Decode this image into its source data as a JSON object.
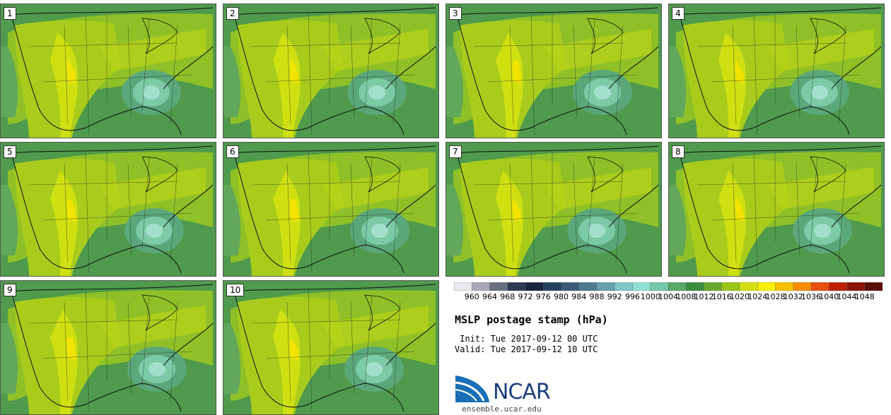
{
  "panels": [
    {
      "label": "1"
    },
    {
      "label": "2"
    },
    {
      "label": "3"
    },
    {
      "label": "4"
    },
    {
      "label": "5"
    },
    {
      "label": "6"
    },
    {
      "label": "7"
    },
    {
      "label": "8"
    },
    {
      "label": "9"
    },
    {
      "label": "10"
    }
  ],
  "legend": {
    "levels": [
      "960",
      "964",
      "968",
      "972",
      "976",
      "980",
      "984",
      "988",
      "992",
      "996",
      "1000",
      "1004",
      "1008",
      "1012",
      "1016",
      "1020",
      "1024",
      "1028",
      "1032",
      "1036",
      "1040",
      "1044",
      "1048"
    ],
    "colors": [
      "#e8e8ee",
      "#a8a8b8",
      "#6a7080",
      "#2e3a55",
      "#1a2540",
      "#24405c",
      "#3a5a78",
      "#4e7a90",
      "#66a0ac",
      "#7ec8c8",
      "#8ee0d4",
      "#72c8a8",
      "#58a868",
      "#3c8c40",
      "#6aa82c",
      "#9cc418",
      "#d4e010",
      "#f8f000",
      "#f8c000",
      "#f88c00",
      "#e85010",
      "#c02000",
      "#8c1408",
      "#5a1008"
    ]
  },
  "info": {
    "title": "MSLP postage stamp (hPa)",
    "init": " Init: Tue 2017-09-12 00 UTC",
    "valid": "Valid: Tue 2017-09-12 10 UTC"
  },
  "branding": {
    "org": "NCAR",
    "url": "ensemble.ucar.edu",
    "accent": "#1a6fb4"
  }
}
